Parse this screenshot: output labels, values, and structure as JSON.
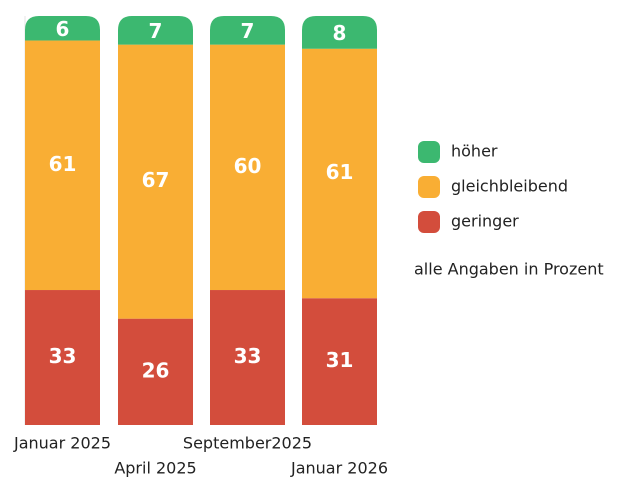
{
  "chart_data": {
    "type": "stacked_bar",
    "categories": [
      "Januar 2025",
      "April 2025",
      "September2025",
      "Januar 2026"
    ],
    "series": [
      {
        "name": "geringer",
        "color": "#d34d3c",
        "values": [
          33,
          26,
          33,
          31
        ]
      },
      {
        "name": "gleichbleibend",
        "color": "#f9ae34",
        "values": [
          61,
          67,
          60,
          61
        ]
      },
      {
        "name": "höher",
        "color": "#3cb870",
        "values": [
          6,
          7,
          7,
          8
        ]
      }
    ],
    "note": "alle Angaben in Prozent"
  }
}
